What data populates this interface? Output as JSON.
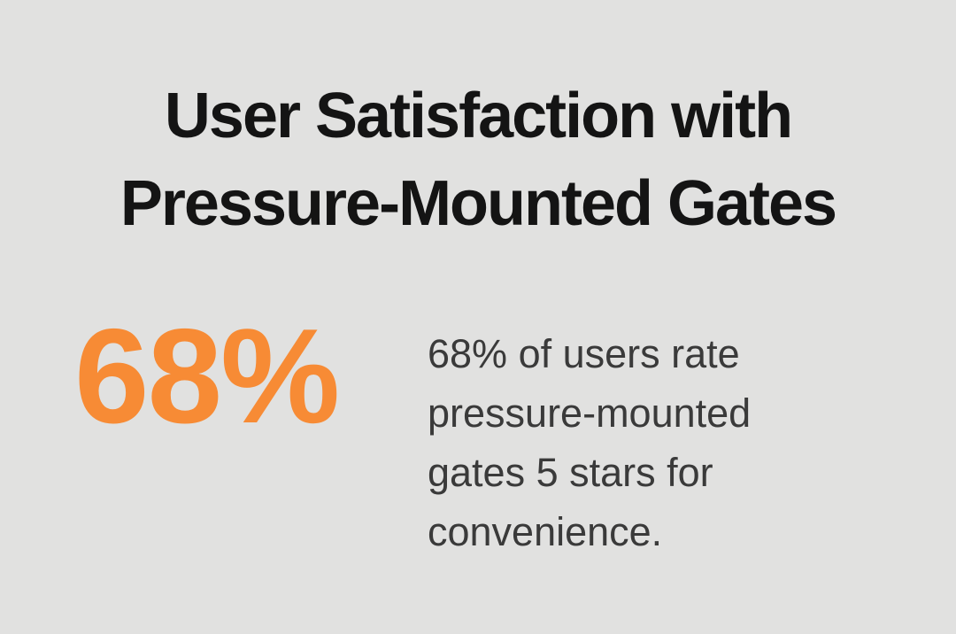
{
  "title": {
    "lines": [
      "User Satisfaction with",
      "Pressure-Mounted Gates"
    ]
  },
  "stat": {
    "value": "68%",
    "description": "68% of users rate pressure-mounted gates 5 stars for convenience.",
    "description_lines": [
      "68% of users rate",
      "pressure-mounted",
      "gates 5 stars for",
      "convenience."
    ]
  },
  "colors": {
    "background": "#e1e1e0",
    "title-color": "#141414",
    "stat-color": "#f78b35",
    "description-color": "#3a3a3a"
  },
  "chart_data": {
    "type": "table",
    "title": "User Satisfaction with Pressure-Mounted Gates",
    "categories": [
      "Users rating pressure-mounted gates 5 stars for convenience"
    ],
    "values": [
      68
    ],
    "unit": "%",
    "annotations": [
      "68% of users rate pressure-mounted gates 5 stars for convenience."
    ]
  }
}
